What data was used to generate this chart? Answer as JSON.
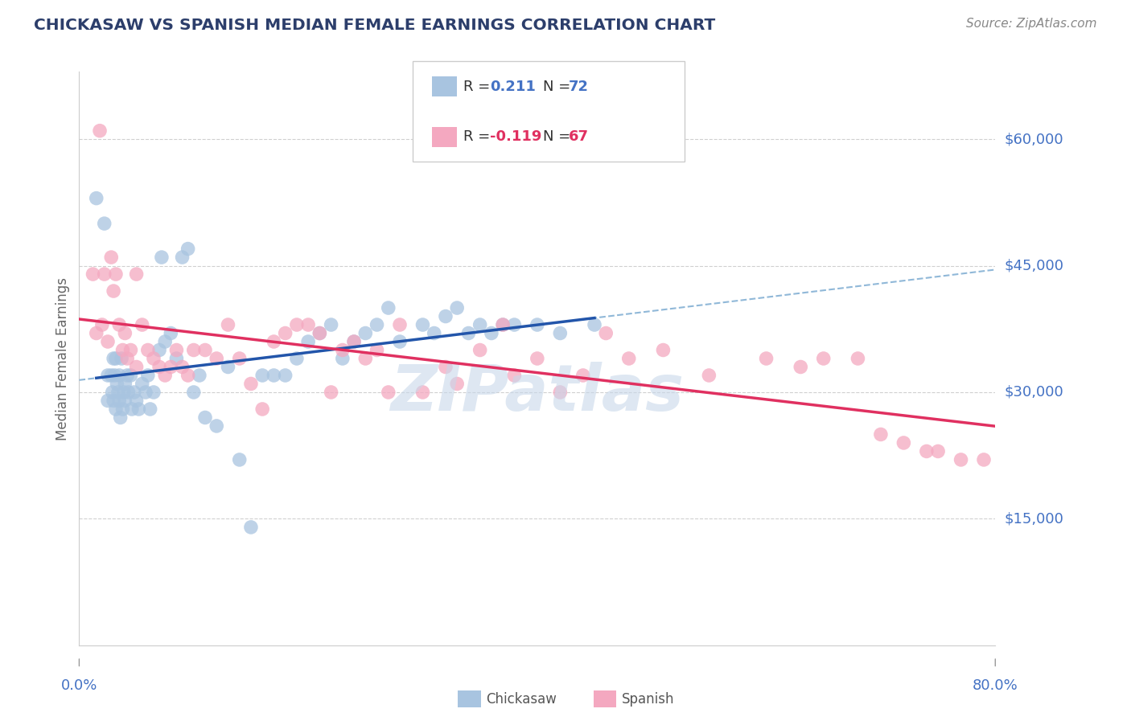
{
  "title": "CHICKASAW VS SPANISH MEDIAN FEMALE EARNINGS CORRELATION CHART",
  "source": "Source: ZipAtlas.com",
  "ylabel": "Median Female Earnings",
  "x_min": 0.0,
  "x_max": 80.0,
  "y_min": 0,
  "y_max": 68000,
  "chickasaw_R": 0.211,
  "chickasaw_N": 72,
  "spanish_R": -0.119,
  "spanish_N": 67,
  "chickasaw_color": "#a8c4e0",
  "spanish_color": "#f4a8c0",
  "chickasaw_line_color": "#2255aa",
  "spanish_line_color": "#e03060",
  "dashed_line_color": "#90b8d8",
  "watermark_color": "#c8d8ea",
  "title_color": "#2c3e6b",
  "axis_label_color": "#4472c4",
  "source_color": "#888888",
  "legend_r_color_chickasaw": "#4472c4",
  "legend_r_color_spanish": "#e03060",
  "legend_n_color_chickasaw": "#4472c4",
  "legend_n_color_spanish": "#e03060",
  "chickasaw_x": [
    1.5,
    2.2,
    2.5,
    2.5,
    2.8,
    2.9,
    3.0,
    3.0,
    3.1,
    3.2,
    3.2,
    3.3,
    3.4,
    3.5,
    3.5,
    3.6,
    3.7,
    3.8,
    3.9,
    4.0,
    4.0,
    4.2,
    4.3,
    4.5,
    4.6,
    4.8,
    5.0,
    5.2,
    5.5,
    5.8,
    6.0,
    6.2,
    6.5,
    7.0,
    7.2,
    7.5,
    8.0,
    8.5,
    9.0,
    9.5,
    10.0,
    10.5,
    11.0,
    12.0,
    13.0,
    14.0,
    15.0,
    16.0,
    17.0,
    18.0,
    19.0,
    20.0,
    21.0,
    22.0,
    23.0,
    24.0,
    25.0,
    26.0,
    27.0,
    28.0,
    30.0,
    31.0,
    32.0,
    33.0,
    34.0,
    35.0,
    36.0,
    37.0,
    38.0,
    40.0,
    42.0,
    45.0
  ],
  "chickasaw_y": [
    53000,
    50000,
    32000,
    29000,
    32000,
    30000,
    29000,
    34000,
    32000,
    34000,
    28000,
    31000,
    30000,
    32000,
    29000,
    27000,
    34000,
    28000,
    30000,
    31000,
    29000,
    32000,
    30000,
    32000,
    28000,
    30000,
    29000,
    28000,
    31000,
    30000,
    32000,
    28000,
    30000,
    35000,
    46000,
    36000,
    37000,
    34000,
    46000,
    47000,
    30000,
    32000,
    27000,
    26000,
    33000,
    22000,
    14000,
    32000,
    32000,
    32000,
    34000,
    36000,
    37000,
    38000,
    34000,
    36000,
    37000,
    38000,
    40000,
    36000,
    38000,
    37000,
    39000,
    40000,
    37000,
    38000,
    37000,
    38000,
    38000,
    38000,
    37000,
    38000
  ],
  "spanish_x": [
    1.2,
    1.5,
    1.8,
    2.0,
    2.2,
    2.5,
    2.8,
    3.0,
    3.2,
    3.5,
    3.8,
    4.0,
    4.2,
    4.5,
    5.0,
    5.0,
    5.5,
    6.0,
    6.5,
    7.0,
    7.5,
    8.0,
    8.5,
    9.0,
    9.5,
    10.0,
    11.0,
    12.0,
    13.0,
    14.0,
    15.0,
    16.0,
    17.0,
    18.0,
    19.0,
    20.0,
    21.0,
    22.0,
    23.0,
    24.0,
    25.0,
    26.0,
    27.0,
    28.0,
    30.0,
    32.0,
    33.0,
    35.0,
    37.0,
    38.0,
    40.0,
    42.0,
    44.0,
    46.0,
    48.0,
    51.0,
    55.0,
    60.0,
    63.0,
    65.0,
    68.0,
    70.0,
    72.0,
    74.0,
    75.0,
    77.0,
    79.0
  ],
  "spanish_y": [
    44000,
    37000,
    61000,
    38000,
    44000,
    36000,
    46000,
    42000,
    44000,
    38000,
    35000,
    37000,
    34000,
    35000,
    33000,
    44000,
    38000,
    35000,
    34000,
    33000,
    32000,
    33000,
    35000,
    33000,
    32000,
    35000,
    35000,
    34000,
    38000,
    34000,
    31000,
    28000,
    36000,
    37000,
    38000,
    38000,
    37000,
    30000,
    35000,
    36000,
    34000,
    35000,
    30000,
    38000,
    30000,
    33000,
    31000,
    35000,
    38000,
    32000,
    34000,
    30000,
    32000,
    37000,
    34000,
    35000,
    32000,
    34000,
    33000,
    34000,
    34000,
    25000,
    24000,
    23000,
    23000,
    22000,
    22000
  ]
}
